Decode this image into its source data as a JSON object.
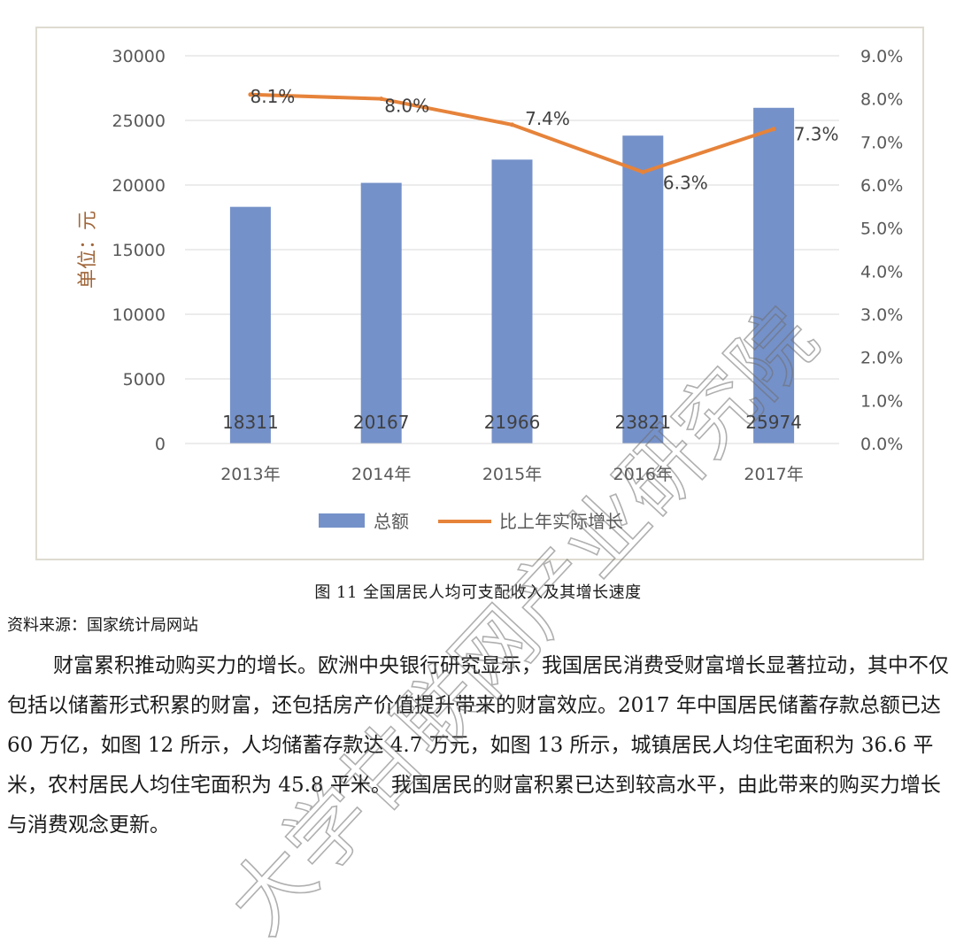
{
  "chart_data": {
    "type": "bar",
    "categories": [
      "2013年",
      "2014年",
      "2015年",
      "2016年",
      "2017年"
    ],
    "series": [
      {
        "name": "总额",
        "type": "bar",
        "axis": "left",
        "values": [
          18311,
          20167,
          21966,
          23821,
          25974
        ],
        "labels": [
          "18311",
          "20167",
          "21966",
          "23821",
          "25974"
        ],
        "color": "#7591c9"
      },
      {
        "name": "比上年实际增长",
        "type": "line",
        "axis": "right",
        "values": [
          8.1,
          8.0,
          7.4,
          6.3,
          7.3
        ],
        "labels": [
          "8.1%",
          "8.0%",
          "7.4%",
          "6.3%",
          "7.3%"
        ],
        "color": "#e6833a"
      }
    ],
    "ylabel": "单位：元",
    "ylim": [
      0,
      30000
    ],
    "y_ticks": [
      "0",
      "5000",
      "10000",
      "15000",
      "20000",
      "25000",
      "30000"
    ],
    "y2lim": [
      0,
      9
    ],
    "y2_ticks": [
      "0.0%",
      "1.0%",
      "2.0%",
      "3.0%",
      "4.0%",
      "5.0%",
      "6.0%",
      "7.0%",
      "8.0%",
      "9.0%"
    ],
    "grid": true,
    "legend": "bottom"
  },
  "caption": "图 11 全国居民人均可支配收入及其增长速度",
  "source": "资料来源：国家统计局网站",
  "paragraph": "财富累积推动购买力的增长。欧洲中央银行研究显示，我国居民消费受财富增长显著拉动，其中不仅包括以储蓄形式积累的财富，还包括房产价值提升带来的财富效应。2017 年中国居民储蓄存款总额已达 60 万亿，如图 12 所示，人均储蓄存款达 4.7 万元，如图 13 所示，城镇居民人均住宅面积为 36.6 平米，农村居民人均住宅面积为 45.8 平米。我国居民的财富积累已达到较高水平，由此带来的购买力增长与消费观念更新。",
  "watermark": "大学甘联网产业研究院"
}
